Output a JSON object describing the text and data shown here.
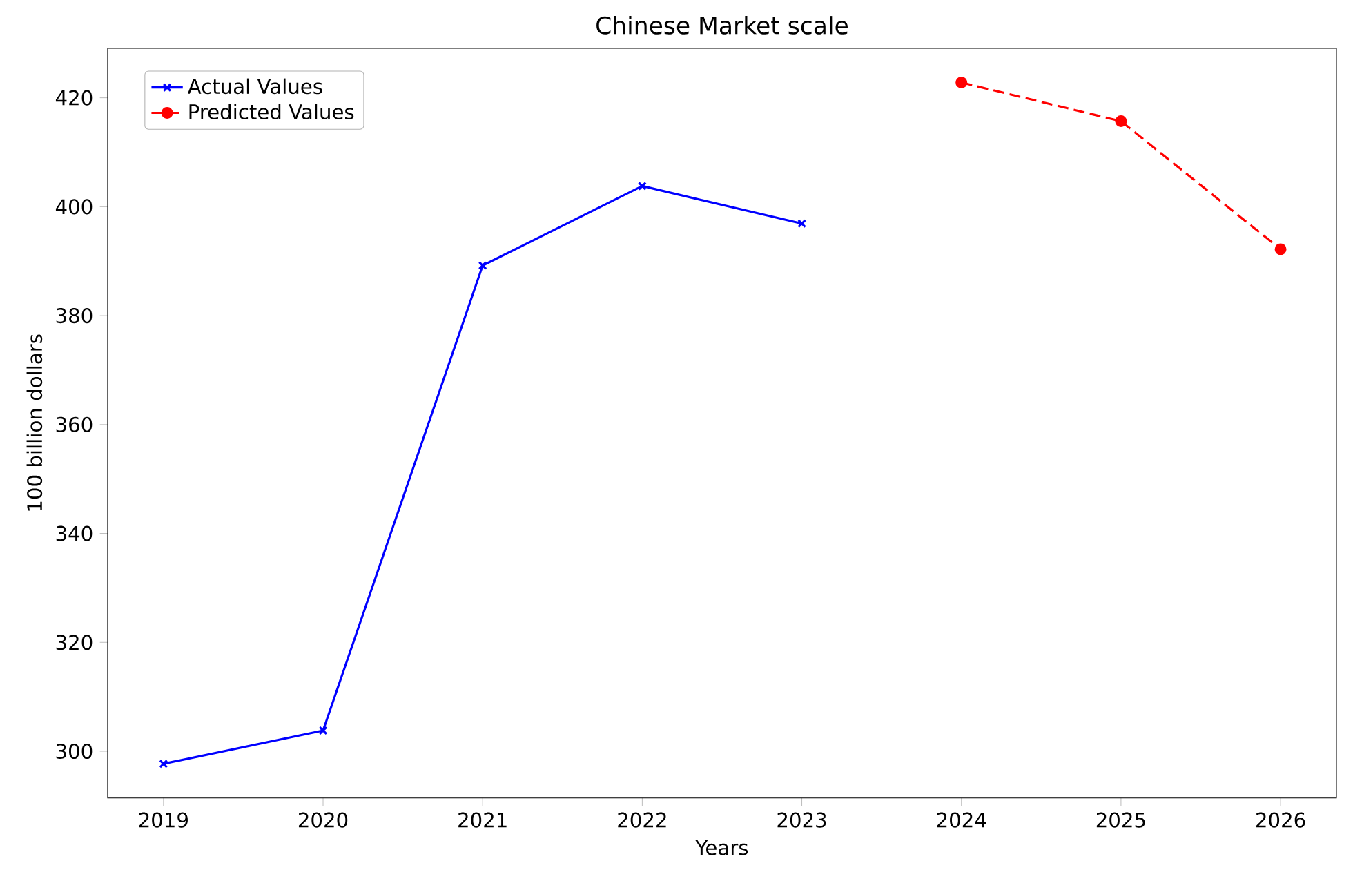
{
  "chart_data": {
    "type": "line",
    "title": "Chinese Market scale",
    "xlabel": "Years",
    "ylabel": "100 billion dollars",
    "series": [
      {
        "name": "Actual Values",
        "color": "#0000ff",
        "marker": "cross",
        "line_style": "solid",
        "x": [
          2019,
          2020,
          2021,
          2022,
          2023
        ],
        "values": [
          297.7,
          303.8,
          389.2,
          403.8,
          396.9
        ]
      },
      {
        "name": "Predicted Values",
        "color": "#ff0000",
        "marker": "circle",
        "line_style": "dashed",
        "x": [
          2024,
          2025,
          2026
        ],
        "values": [
          422.8,
          415.7,
          392.2
        ]
      }
    ],
    "xlim": [
      2018.65,
      2026.35
    ],
    "ylim": [
      291.4,
      429.1
    ],
    "xticks": [
      2019,
      2020,
      2021,
      2022,
      2023,
      2024,
      2025,
      2026
    ],
    "yticks": [
      300,
      320,
      340,
      360,
      380,
      400,
      420
    ],
    "legend": "top left",
    "grid": false
  }
}
